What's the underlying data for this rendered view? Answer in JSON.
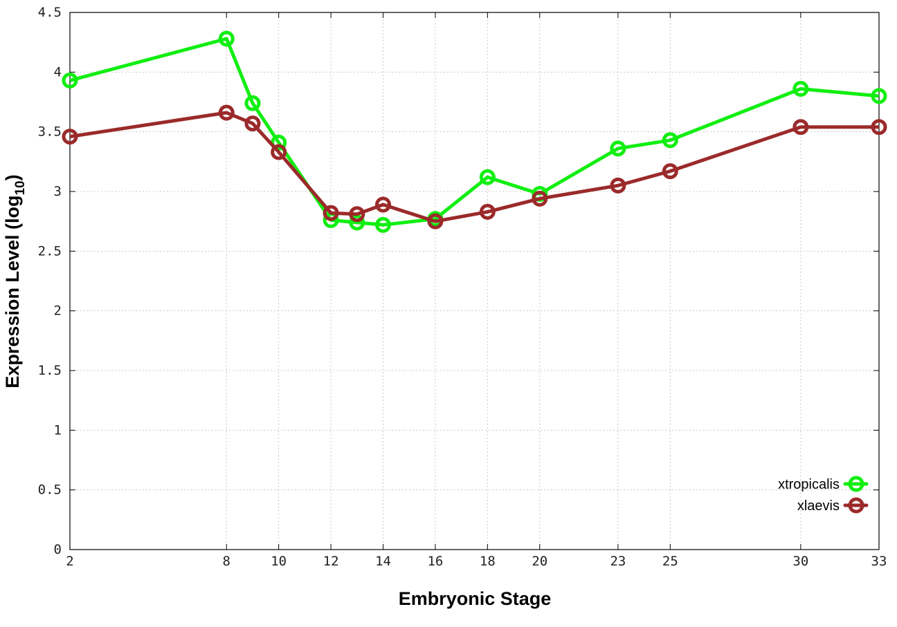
{
  "chart_data": {
    "type": "line",
    "title": "",
    "xlabel": "Embryonic Stage",
    "ylabel": {
      "main": "Expression Level (log",
      "sub": "10",
      "close": ")"
    },
    "x": [
      2,
      8,
      9,
      10,
      12,
      13,
      14,
      16,
      18,
      20,
      23,
      25,
      30,
      33
    ],
    "xticks": [
      {
        "value": 2,
        "label": "2"
      },
      {
        "value": 8,
        "label": "8"
      },
      {
        "value": 10,
        "label": "10"
      },
      {
        "value": 12,
        "label": "12"
      },
      {
        "value": 14,
        "label": "14"
      },
      {
        "value": 16,
        "label": "16"
      },
      {
        "value": 18,
        "label": "18"
      },
      {
        "value": 20,
        "label": "20"
      },
      {
        "value": 23,
        "label": "23"
      },
      {
        "value": 25,
        "label": "25"
      },
      {
        "value": 30,
        "label": "30"
      },
      {
        "value": 33,
        "label": "33"
      }
    ],
    "yticks": [
      {
        "value": 0,
        "label": "0"
      },
      {
        "value": 0.5,
        "label": "0.5"
      },
      {
        "value": 1,
        "label": "1"
      },
      {
        "value": 1.5,
        "label": "1.5"
      },
      {
        "value": 2,
        "label": "2"
      },
      {
        "value": 2.5,
        "label": "2.5"
      },
      {
        "value": 3,
        "label": "3"
      },
      {
        "value": 3.5,
        "label": "3.5"
      },
      {
        "value": 4,
        "label": "4"
      },
      {
        "value": 4.5,
        "label": "4.5"
      }
    ],
    "xlim": [
      2,
      33
    ],
    "ylim": [
      0,
      4.5
    ],
    "grid": true,
    "legend_position": "bottom-right",
    "series": [
      {
        "name": "xtropicalis",
        "color": "#11ee11",
        "values": [
          3.93,
          4.28,
          3.74,
          3.41,
          2.76,
          2.74,
          2.72,
          2.77,
          3.12,
          2.98,
          3.36,
          3.43,
          3.86,
          3.8
        ]
      },
      {
        "name": "xlaevis",
        "color": "#9b2a2a",
        "values": [
          3.46,
          3.66,
          3.57,
          3.33,
          2.82,
          2.81,
          2.89,
          2.75,
          2.83,
          2.94,
          3.05,
          3.17,
          3.54,
          3.54
        ]
      }
    ]
  }
}
